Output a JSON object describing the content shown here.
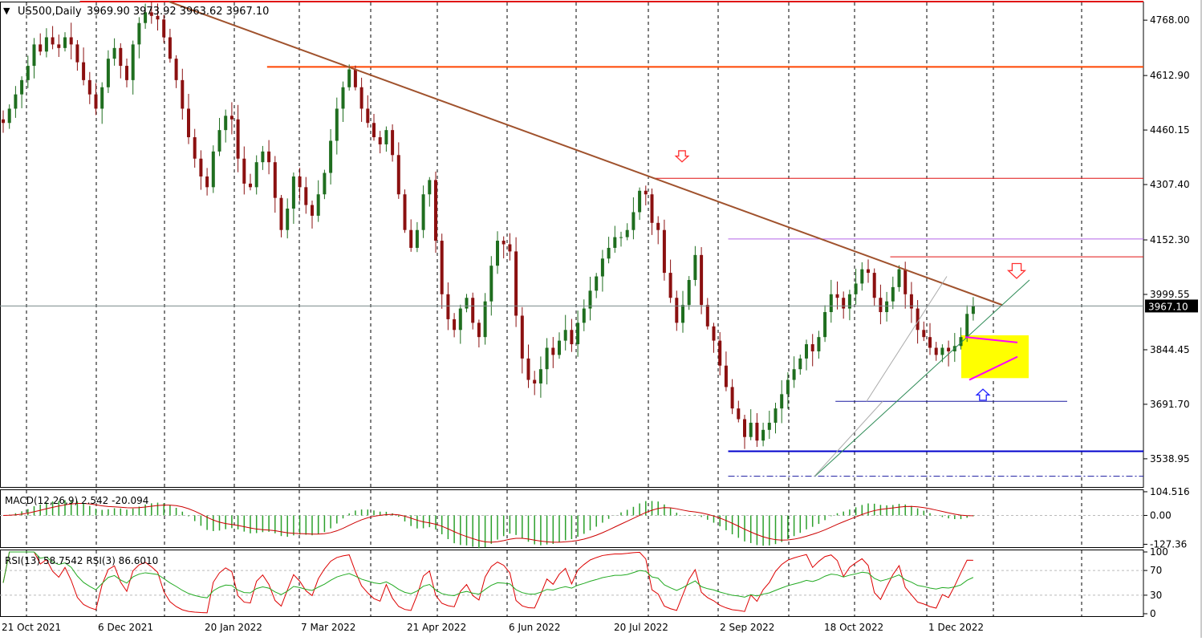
{
  "header": {
    "symbol": "US500,Daily",
    "ohlc": "3969.90 3973.92 3963.62 3967.10",
    "menu_glyph": "▼"
  },
  "colors": {
    "bull_candle": "#1f6e1f",
    "bear_candle": "#8b1010",
    "frame": "#000000",
    "grid": "#000000",
    "main_trendline": "#a0522d",
    "resistance_red": "#e01010",
    "resistance_orange": "#ff4500",
    "level_violet": "#b565e8",
    "support_blue": "#0000cc",
    "support_navy": "#1a1aa0",
    "rising_trendline": "#2e8b57",
    "triangle_lines": "#ff00ff",
    "consolidation_box": "#ffff00",
    "arrow_red": "#ff3030",
    "arrow_blue": "#2020ff",
    "price_label_bg": "#000000",
    "price_label_text": "#ffffff",
    "macd_histogram": "#2ca02c",
    "macd_signal": "#cc0000",
    "rsi13_line": "#22aa22",
    "rsi3_line": "#dd0000"
  },
  "chart_data": {
    "type": "candlestick",
    "title": "US500,Daily",
    "last_ohlc": {
      "open": 3969.9,
      "high": 3973.92,
      "low": 3963.62,
      "close": 3967.1
    },
    "current_price": 3967.1,
    "current_price_label": "3967.10",
    "x_ticks": [
      "21 Oct 2021",
      "6 Dec 2021",
      "20 Jan 2022",
      "7 Mar 2022",
      "21 Apr 2022",
      "6 Jun 2022",
      "20 Jul 2022",
      "2 Sep 2022",
      "18 Oct 2022",
      "1 Dec 2022"
    ],
    "price_ticks": [
      "4768.00",
      "4612.90",
      "4460.15",
      "4307.40",
      "4152.30",
      "3999.55",
      "3844.45",
      "3691.70",
      "3538.95"
    ],
    "price_ylim": [
      3460,
      4820
    ],
    "approx_closes": [
      4480,
      4520,
      4560,
      4600,
      4640,
      4700,
      4680,
      4720,
      4700,
      4690,
      4720,
      4700,
      4650,
      4600,
      4560,
      4520,
      4580,
      4660,
      4690,
      4640,
      4600,
      4700,
      4760,
      4790,
      4780,
      4770,
      4720,
      4660,
      4600,
      4520,
      4440,
      4380,
      4330,
      4300,
      4400,
      4460,
      4500,
      4490,
      4380,
      4310,
      4300,
      4370,
      4400,
      4370,
      4270,
      4180,
      4240,
      4330,
      4300,
      4250,
      4220,
      4280,
      4340,
      4430,
      4520,
      4580,
      4630,
      4580,
      4520,
      4480,
      4440,
      4420,
      4460,
      4390,
      4280,
      4180,
      4130,
      4180,
      4280,
      4320,
      4150,
      4000,
      3930,
      3900,
      3960,
      3990,
      3920,
      3880,
      3980,
      4080,
      4150,
      4140,
      4120,
      3940,
      3820,
      3760,
      3750,
      3790,
      3850,
      3830,
      3870,
      3900,
      3860,
      3920,
      3960,
      4010,
      4050,
      4100,
      4130,
      4160,
      4160,
      4180,
      4230,
      4290,
      4280,
      4200,
      4180,
      4060,
      3990,
      3920,
      3970,
      4040,
      4110,
      3970,
      3910,
      3870,
      3800,
      3740,
      3680,
      3650,
      3600,
      3640,
      3590,
      3620,
      3640,
      3680,
      3720,
      3760,
      3790,
      3820,
      3860,
      3840,
      3880,
      3950,
      4000,
      3990,
      3960,
      4000,
      4030,
      4070,
      4060,
      3990,
      3950,
      3980,
      4020,
      4070,
      4000,
      3960,
      3900,
      3880,
      3850,
      3830,
      3850,
      3840,
      3855,
      3880,
      3945,
      3967.1
    ],
    "annotations": {
      "horizontal_lines": [
        {
          "name": "resistance-high",
          "price": 4820,
          "x_start_date": "25 Nov 2021"
        },
        {
          "name": "resistance-orange",
          "price": 4637,
          "x_start_date": "15 Feb 2022"
        },
        {
          "name": "resistance-aug-peak",
          "price": 4325,
          "x_start_date": "3 Aug 2022"
        },
        {
          "name": "level-violet",
          "price": 4155,
          "x_start_date": "5 Sep 2022"
        },
        {
          "name": "resistance-nov",
          "price": 4105,
          "x_start_date": "15 Nov 2022"
        },
        {
          "name": "support-oct",
          "price": 3700,
          "x_start_date": "22 Oct 2022"
        },
        {
          "name": "support-main",
          "price": 3560,
          "x_start_date": "5 Sep 2022"
        },
        {
          "name": "support-dashdot",
          "price": 3490,
          "x_start_date": "5 Sep 2022"
        }
      ],
      "trendlines": [
        {
          "name": "main-downtrend",
          "from": [
            "3 Jan 2022",
            4820
          ],
          "to": [
            "3 Jan 2023",
            3970
          ]
        },
        {
          "name": "rising-support",
          "from": [
            "13 Oct 2022",
            3490
          ],
          "to": [
            "15 Jan 2023",
            4040
          ]
        }
      ],
      "arrows": [
        {
          "name": "arrow-down-aug",
          "direction": "down",
          "price": 4375
        },
        {
          "name": "arrow-down-dec",
          "direction": "down",
          "price": 4050
        },
        {
          "name": "arrow-up-dec",
          "direction": "up",
          "price": 3730
        }
      ],
      "consolidation_box": {
        "price_top": 3885,
        "price_bottom": 3765
      },
      "triangle": {
        "upper": [
          3880,
          3865
        ],
        "lower": [
          3760,
          3825
        ]
      }
    },
    "indicators": {
      "macd": {
        "label": "MACD(12,26,9) 2.542 -20.094",
        "params": [
          12,
          26,
          9
        ],
        "main": 2.542,
        "signal": -20.094,
        "ticks": [
          "104.516",
          "0.00",
          "-127.36"
        ],
        "ylim": [
          -140,
          115
        ]
      },
      "rsi": {
        "label": "RSI(13) 58.7542  RSI(3) 86.6010",
        "rsi13": 58.7542,
        "rsi3": 86.601,
        "ticks": [
          "100",
          "70",
          "30",
          "0"
        ],
        "ylim": [
          0,
          100
        ],
        "levels": [
          70,
          30
        ]
      }
    }
  }
}
